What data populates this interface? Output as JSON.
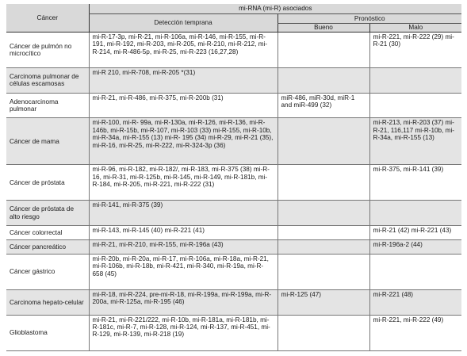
{
  "header": {
    "cancer": "Cáncer",
    "mirna_group": "mi-RNA (mi-R) asociados",
    "early_detection": "Detección temprana",
    "prognosis": "Pronóstico",
    "good": "Bueno",
    "bad": "Malo"
  },
  "rows": [
    {
      "cancer": "Cáncer de pulmón no microcítico",
      "early": "mi-R-17-3p, mi-R-21, mi-R-106a, mi-R-146, mi-R-155, mi-R-191, mi-R-192, mi-R-203, mi-R-205, mi-R-210, mi-R-212, mi-R-214, mi-R-486-5p, mi-R-25, mi-R-223 (16,27,28)",
      "good": "",
      "bad": "mi-R-221, mi-R-222 (29) mi-R-21 (30)"
    },
    {
      "cancer": "Carcinoma pulmonar de células escamosas",
      "early": "mi-R 210, mi-R-708, mi-R-205 *(31)",
      "good": "",
      "bad": ""
    },
    {
      "cancer": "Adenocarcinoma pulmonar",
      "early": "mi-R-21, mi-R-486, mi-R-375, mi-R-200b (31)",
      "good": "miR-486, miR-30d, miR-1 and miR-499 (32)",
      "bad": ""
    },
    {
      "cancer": "Cáncer de mama",
      "early": "mi-R-100, mi-R- 99a, mi-R-130a, mi-R-126, mi-R-136, mi-R-146b, mi-R-15b, mi-R-107, mi-R-103 (33) mi-R-155, mi-R-10b, mi-R-34a, mi-R-155 (13) mi-R- 195 (34) mi-R-29, mi-R-21 (35), mi-R-16, mi-R-25, mi-R-222, mi-R-324-3p (36)",
      "good": "",
      "bad": "mi-R-213, mi-R-203 (37) mi-R-21, 116,117 mi-R-10b, mi-R-34a, mi-R-155 (13)"
    },
    {
      "cancer": "Cáncer de próstata",
      "early": "mi-R-96, mi-R-182, mi-R-182/, mi-R-183, mi-R-375 (38) mi-R-16, mi-R-31, mi-R-125b, mi-R-145, mi-R-149, mi-R-181b, mi-R-184, mi-R-205, mi-R-221, mi-R-222 (31)",
      "good": "",
      "bad": "mi-R-375, mi-R-141 (39)"
    },
    {
      "cancer": "Cáncer de próstata de alto riesgo",
      "early": "mi-R-141, mi-R-375 (39)",
      "good": "",
      "bad": ""
    },
    {
      "cancer": "Cáncer colorrectal",
      "early": "mi-R-143, mi-R-145 (40) mi-R-221 (41)",
      "good": "",
      "bad": "mi-R-21 (42) mi-R-221 (43)"
    },
    {
      "cancer": "Cáncer pancreático",
      "early": "mi-R-21, mi-R-210, mi-R-155, mi-R-196a (43)",
      "good": "",
      "bad": "mi-R-196a-2 (44)"
    },
    {
      "cancer": "Cáncer gástrico",
      "early": "mi-R-20b, mi-R-20a, mi-R-17, mi-R-106a, mi-R-18a, mi-R-21, mi-R-106b, mi-R-18b, mi-R-421, mi-R-340, mi-R-19a, mi-R- 658 (45)",
      "good": "",
      "bad": ""
    },
    {
      "cancer": "Carcinoma hepato-celular",
      "early": "mi-R-18, mi-R-224, pre-mi-R-18, mi-R-199a, mi-R-199a, mi-R-200a, mi-R-125a, mi-R-195 (46)",
      "good": "mi-R-125 (47)",
      "bad": "mi-R-221 (48)"
    },
    {
      "cancer": "Glioblastoma",
      "early": "mi-R-21, mi-R-221/222, mi-R-10b, mi-R-181a, mi-R-181b, mi-R-181c, mi-R-7, mi-R-128, mi-R-124, mi-R-137, mi-R-451, mi-R-129, mi-R-139, mi-R-218 (19)",
      "good": "",
      "bad": "mi-R-221, mi-R-222 (49)"
    }
  ]
}
